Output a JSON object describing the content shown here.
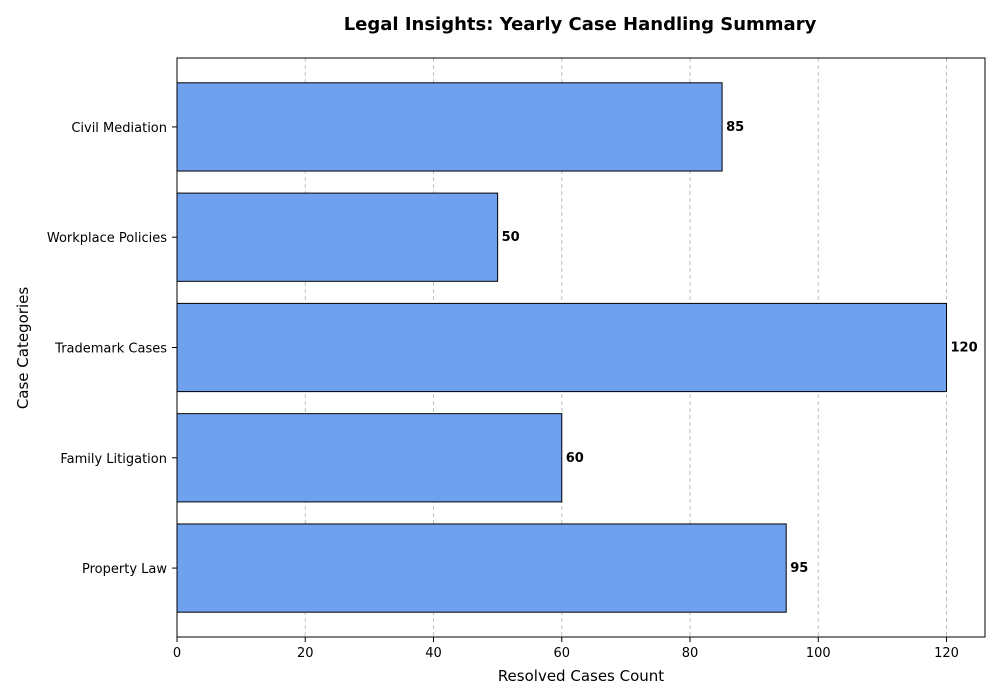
{
  "chart_data": {
    "type": "bar",
    "orientation": "horizontal",
    "title": "Legal Insights: Yearly Case Handling Summary",
    "xlabel": "Resolved Cases Count",
    "ylabel": "Case Categories",
    "categories": [
      "Property Law",
      "Family Litigation",
      "Trademark Cases",
      "Workplace Policies",
      "Civil Mediation"
    ],
    "values": [
      95,
      60,
      120,
      50,
      85
    ],
    "data_labels": [
      "95",
      "60",
      "120",
      "50",
      "85"
    ],
    "xlim": [
      0,
      126
    ],
    "xticks": [
      0,
      20,
      40,
      60,
      80,
      100,
      120
    ],
    "xtick_labels": [
      "0",
      "20",
      "40",
      "60",
      "80",
      "100",
      "120"
    ],
    "grid": "x-axis dashed",
    "legend": "none",
    "colors": {
      "bar_fill": "#6fa1ee",
      "bar_edge": "#000000",
      "grid": "#c0c0c0"
    }
  }
}
